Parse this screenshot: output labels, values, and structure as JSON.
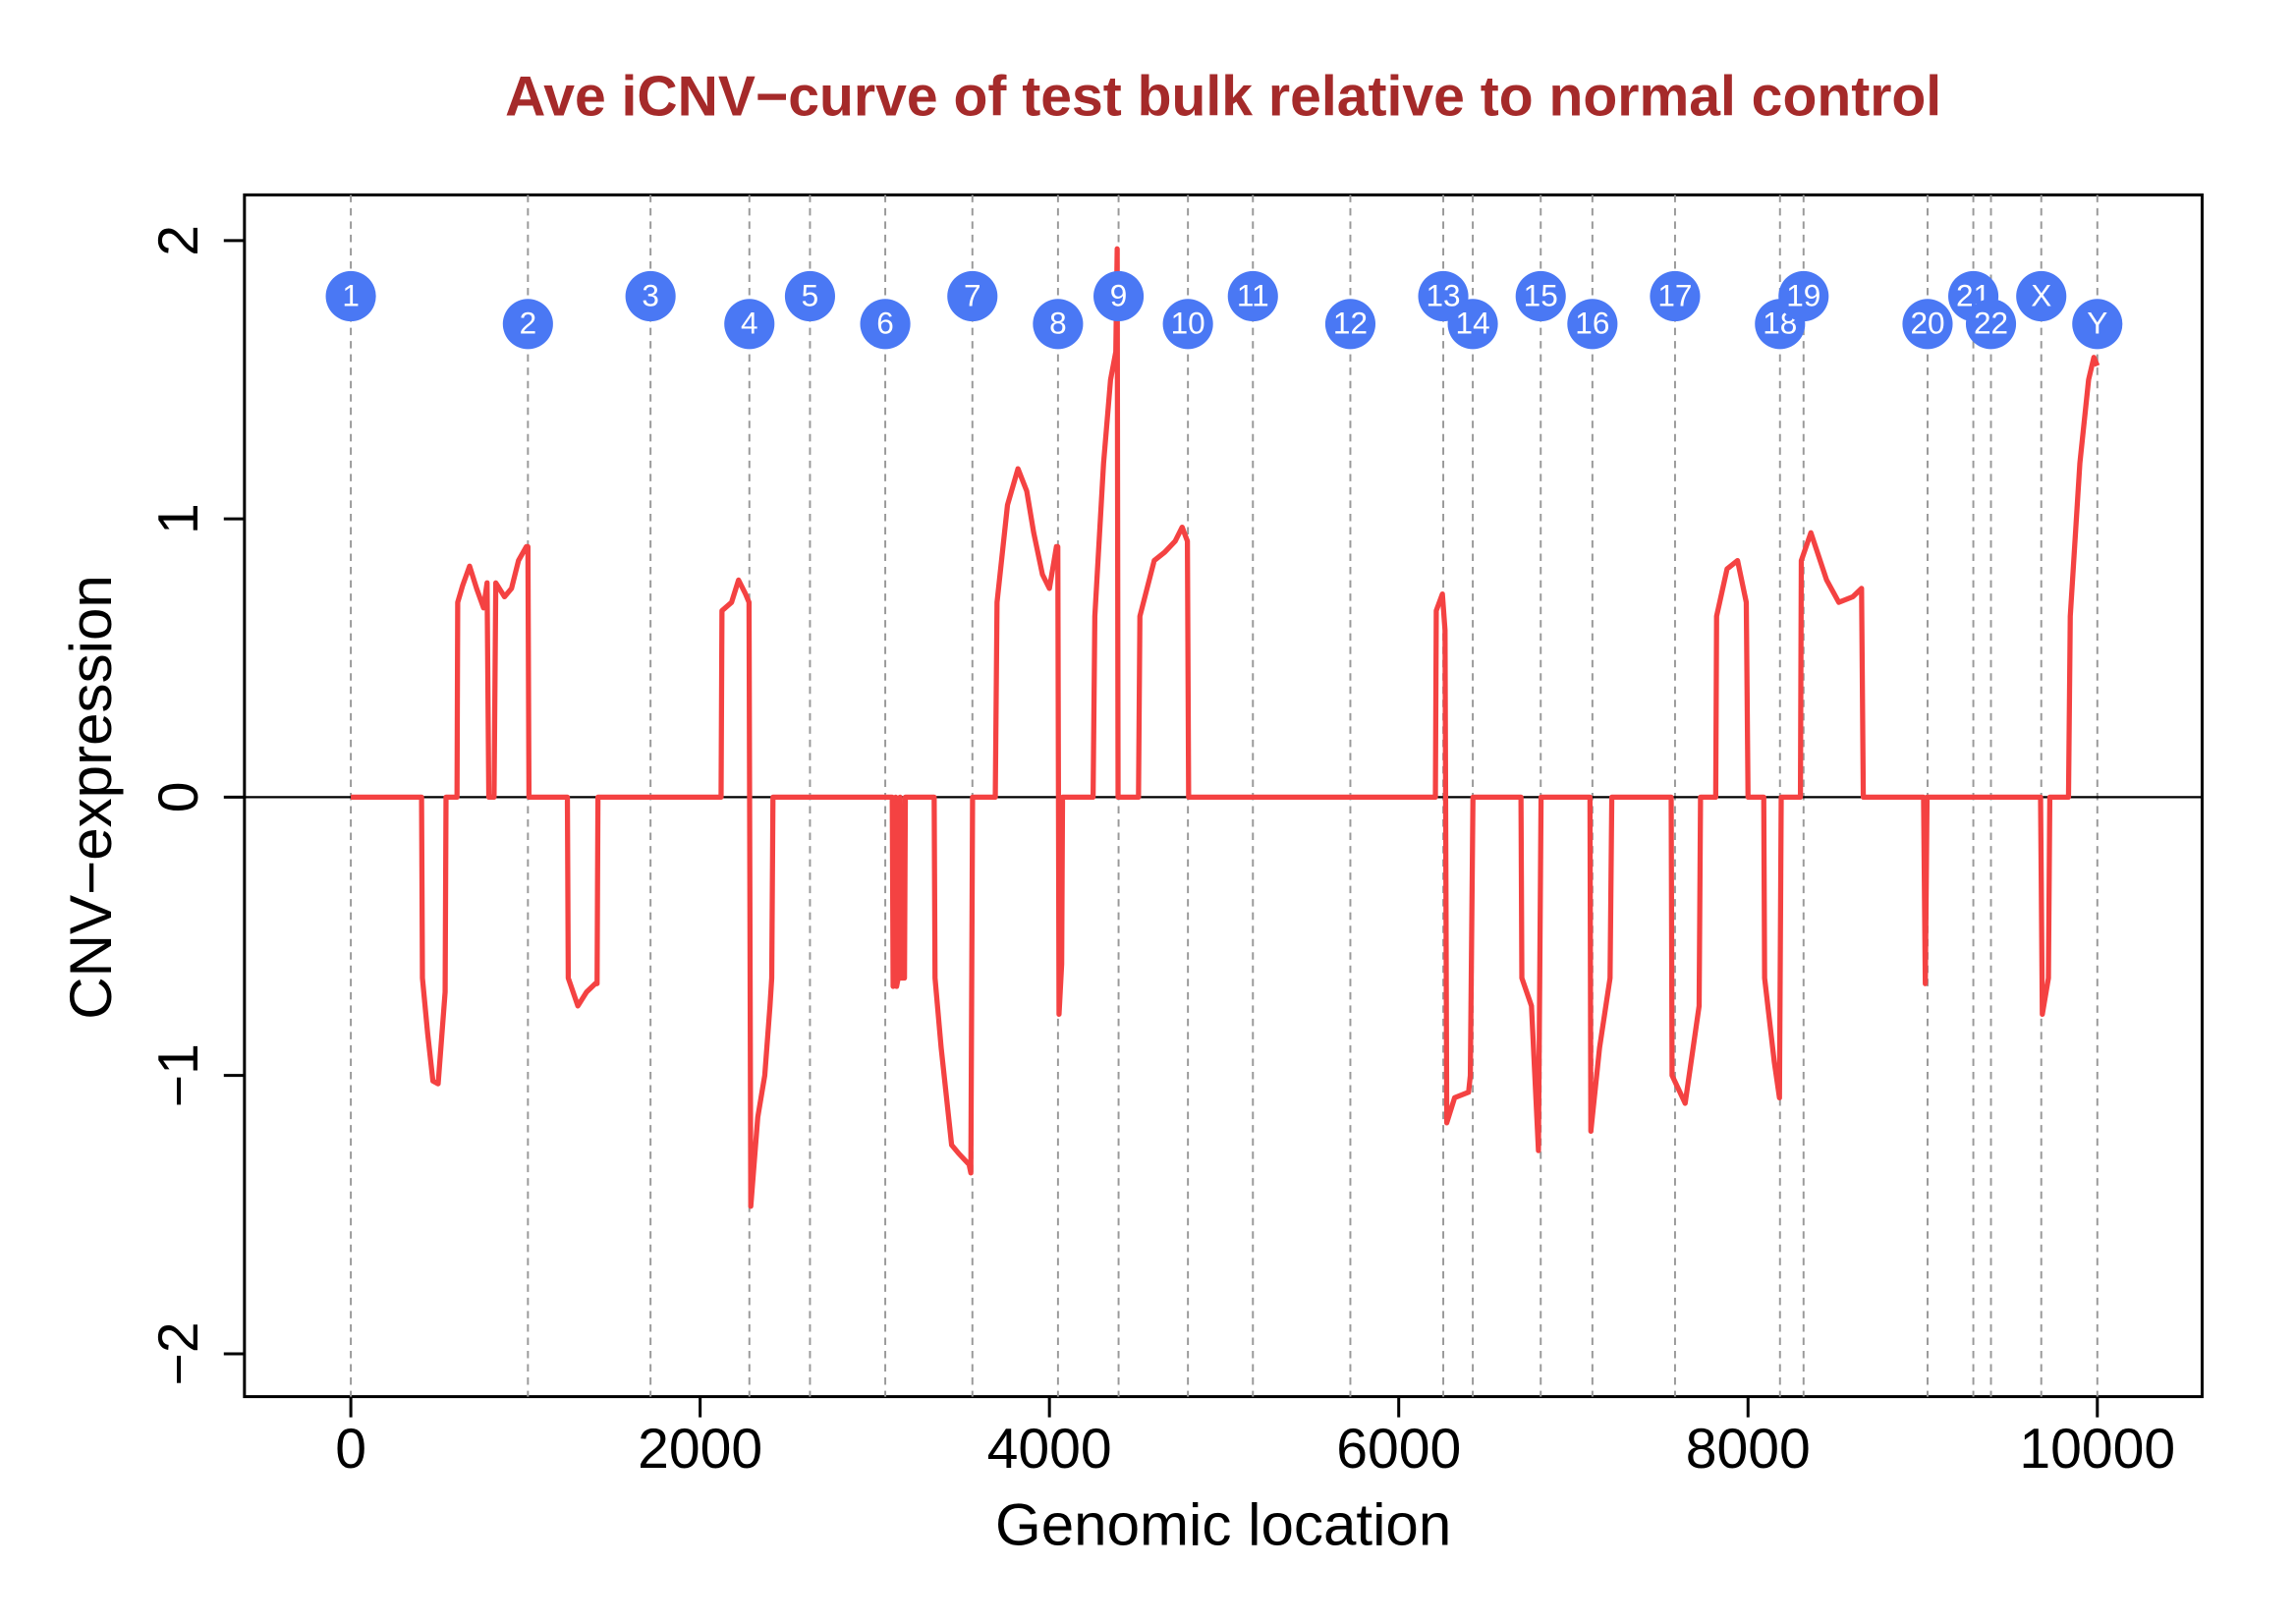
{
  "chart_data": {
    "type": "line",
    "title": "Ave iCNV−curve of test bulk relative to normal control",
    "x_label": "Genomic location",
    "y_label": "CNV−expression",
    "color": "#f44242",
    "xlim": [
      -609,
      10600
    ],
    "ylim": [
      -2.154,
      2.164
    ],
    "xticks": [
      0,
      2000,
      4000,
      6000,
      8000,
      10000
    ],
    "yticks": [
      {
        "value": -2,
        "label": "−2"
      },
      {
        "value": -1,
        "label": "−1"
      },
      0,
      1,
      2
    ],
    "hline": 0,
    "x": [
      0,
      405,
      410,
      440,
      470,
      500,
      540,
      545,
      600,
      608,
      612,
      640,
      680,
      720,
      760,
      780,
      790,
      820,
      830,
      880,
      920,
      960,
      1005,
      1014,
      1020,
      1240,
      1245,
      1300,
      1350,
      1400,
      1410,
      1415,
      2120,
      2125,
      2180,
      2220,
      2260,
      2280,
      2290,
      2330,
      2370,
      2400,
      2410,
      2417,
      3100,
      3105,
      3115,
      3120,
      3125,
      3140,
      3145,
      3150,
      3170,
      3175,
      3340,
      3345,
      3380,
      3440,
      3480,
      3540,
      3550,
      3560,
      3690,
      3700,
      3760,
      3820,
      3870,
      3910,
      3960,
      4000,
      4040,
      4048,
      4055,
      4070,
      4075,
      4250,
      4260,
      4310,
      4350,
      4380,
      4388,
      4393,
      4510,
      4518,
      4600,
      4660,
      4720,
      4760,
      4790,
      4797,
      6210,
      6215,
      6250,
      6265,
      6275,
      6320,
      6400,
      6410,
      6425,
      6700,
      6705,
      6760,
      6800,
      6815,
      7095,
      7100,
      7150,
      7210,
      7220,
      7560,
      7565,
      7640,
      7720,
      7728,
      7815,
      7820,
      7880,
      7940,
      7990,
      8000,
      8090,
      8095,
      8150,
      8180,
      8190,
      8300,
      8305,
      8360,
      8450,
      8520,
      8600,
      8650,
      8660,
      9005,
      9015,
      9025,
      9675,
      9685,
      9720,
      9728,
      9835,
      9845,
      9900,
      9950,
      9980,
      10000
    ],
    "values": [
      0,
      0,
      -0.65,
      -0.85,
      -1.02,
      -1.03,
      -0.7,
      0,
      0,
      0,
      0.7,
      0.76,
      0.83,
      0.75,
      0.68,
      0.77,
      0,
      0,
      0.77,
      0.72,
      0.75,
      0.85,
      0.9,
      0.9,
      0,
      0,
      -0.65,
      -0.75,
      -0.7,
      -0.67,
      -0.67,
      0,
      0,
      0.67,
      0.7,
      0.78,
      0.73,
      0.7,
      -1.47,
      -1.15,
      -1.0,
      -0.75,
      -0.65,
      0,
      0,
      -0.68,
      -0.65,
      0,
      -0.68,
      -0.63,
      0,
      -0.65,
      -0.65,
      0,
      0,
      -0.65,
      -0.9,
      -1.25,
      -1.28,
      -1.32,
      -1.35,
      0,
      0,
      0.7,
      1.05,
      1.18,
      1.1,
      0.95,
      0.8,
      0.75,
      0.9,
      0.9,
      -0.78,
      -0.6,
      0,
      0,
      0.65,
      1.2,
      1.5,
      1.6,
      1.97,
      0,
      0,
      0.65,
      0.85,
      0.88,
      0.92,
      0.97,
      0.92,
      0,
      0,
      0.67,
      0.73,
      0.6,
      -1.17,
      -1.08,
      -1.06,
      -1.0,
      0,
      0,
      -0.65,
      -0.75,
      -1.27,
      0,
      0,
      -1.2,
      -0.9,
      -0.65,
      0,
      0,
      -1.0,
      -1.1,
      -0.75,
      0,
      0,
      0.65,
      0.82,
      0.85,
      0.7,
      0,
      0,
      -0.65,
      -0.95,
      -1.08,
      0,
      0,
      0.85,
      0.95,
      0.78,
      0.7,
      0.72,
      0.75,
      0,
      0,
      -0.67,
      0,
      0,
      -0.78,
      -0.65,
      0,
      0,
      0.65,
      1.2,
      1.5,
      1.58,
      1.55
    ],
    "chromosomes": [
      {
        "label": "1",
        "x": 0,
        "y": 1.8
      },
      {
        "label": "2",
        "x": 1014,
        "y": 1.7
      },
      {
        "label": "3",
        "x": 1716,
        "y": 1.8
      },
      {
        "label": "4",
        "x": 2282,
        "y": 1.7
      },
      {
        "label": "5",
        "x": 2629,
        "y": 1.8
      },
      {
        "label": "6",
        "x": 3060,
        "y": 1.7
      },
      {
        "label": "7",
        "x": 3559,
        "y": 1.8
      },
      {
        "label": "8",
        "x": 4049,
        "y": 1.7
      },
      {
        "label": "9",
        "x": 4396,
        "y": 1.8
      },
      {
        "label": "10",
        "x": 4793,
        "y": 1.7
      },
      {
        "label": "11",
        "x": 5165,
        "y": 1.8
      },
      {
        "label": "12",
        "x": 5723,
        "y": 1.7
      },
      {
        "label": "13",
        "x": 6255,
        "y": 1.8
      },
      {
        "label": "14",
        "x": 6424,
        "y": 1.7
      },
      {
        "label": "15",
        "x": 6813,
        "y": 1.8
      },
      {
        "label": "16",
        "x": 7109,
        "y": 1.7
      },
      {
        "label": "17",
        "x": 7582,
        "y": 1.8
      },
      {
        "label": "18",
        "x": 8183,
        "y": 1.7
      },
      {
        "label": "19",
        "x": 8318,
        "y": 1.8
      },
      {
        "label": "20",
        "x": 9028,
        "y": 1.7
      },
      {
        "label": "21",
        "x": 9290,
        "y": 1.8
      },
      {
        "label": "22",
        "x": 9391,
        "y": 1.7
      },
      {
        "label": "X",
        "x": 9679,
        "y": 1.8
      },
      {
        "label": "Y",
        "x": 10000,
        "y": 1.7
      }
    ]
  }
}
